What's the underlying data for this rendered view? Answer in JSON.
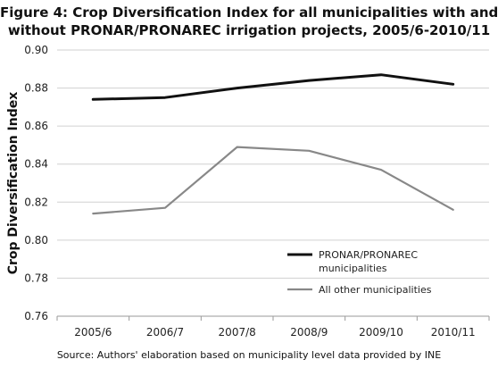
{
  "title_lines": [
    "Figure 4: Crop Diversification Index for all municipalities with and",
    "without PRONAR/PRONAREC irrigation projects, 2005/6-2010/11"
  ],
  "source": "Source: Authors' elaboration based on municipality level data provided by INE",
  "chart_data": {
    "type": "line",
    "title": "Figure 4: Crop Diversification Index for all municipalities with and without PRONAR/PRONAREC irrigation projects, 2005/6-2010/11",
    "xlabel": "",
    "ylabel": "Crop Diversification Index",
    "categories": [
      "2005/6",
      "2006/7",
      "2007/8",
      "2008/9",
      "2009/10",
      "2010/11"
    ],
    "ylim": [
      0.76,
      0.9
    ],
    "yticks": [
      "0.76",
      "0.78",
      "0.80",
      "0.82",
      "0.84",
      "0.86",
      "0.88",
      "0.90"
    ],
    "grid": true,
    "legend_position": "bottom-right",
    "series": [
      {
        "name_lines": [
          "PRONAR/PRONAREC",
          "municipalities"
        ],
        "values": [
          0.874,
          0.875,
          0.88,
          0.884,
          0.887,
          0.882
        ],
        "color": "#111111"
      },
      {
        "name_lines": [
          "All other municipalities"
        ],
        "values": [
          0.814,
          0.817,
          0.849,
          0.847,
          0.837,
          0.816
        ],
        "color": "#888888"
      }
    ]
  }
}
